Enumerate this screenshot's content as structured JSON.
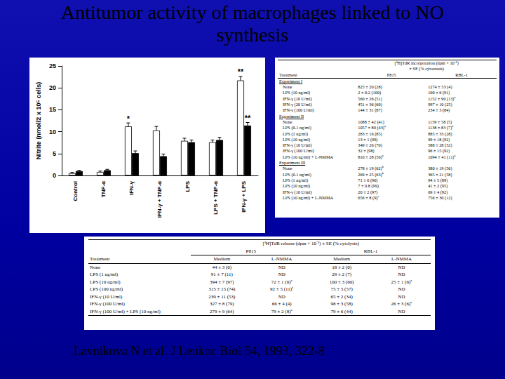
{
  "title_lines": [
    "Antitumor activity of macrophages linked to NO",
    "synthesis"
  ],
  "chart_data": {
    "type": "bar",
    "y_label": "Nitrite (nmol/2 x 10⁵ cells)",
    "categories": [
      "Control",
      "TNF-α",
      "IFN-γ",
      "IFN-γ + TNF-α",
      "LPS",
      "LPS + TNF-α",
      "IFN-γ + LPS"
    ],
    "series": [
      {
        "color": "#ffffff",
        "values": [
          0.5,
          0.8,
          11.2,
          10.3,
          7.9,
          7.6,
          21.7
        ],
        "errors": [
          0.2,
          0.2,
          0.8,
          0.9,
          0.6,
          0.5,
          0.9
        ],
        "annotations": [
          null,
          null,
          "*",
          null,
          null,
          null,
          "**"
        ]
      },
      {
        "color": "#000000",
        "values": [
          1.0,
          1.2,
          5.1,
          4.4,
          7.6,
          8.1,
          11.4
        ],
        "errors": [
          0.2,
          0.2,
          0.5,
          0.5,
          0.5,
          0.6,
          0.7
        ],
        "annotations": [
          null,
          null,
          null,
          null,
          null,
          null,
          "**"
        ]
      }
    ],
    "ylim": [
      0,
      25
    ],
    "yticks": [
      0,
      5,
      10,
      15,
      20,
      25
    ],
    "grid": false
  },
  "table1": {
    "header": {
      "treatment": "Treatment",
      "measure_lines": [
        "[³H]TdR incorporation (dpm × 10⁻³)",
        "± SE (% cytostasis)"
      ],
      "columns": [
        "P815",
        "RBL-1"
      ]
    },
    "sections": [
      {
        "label": "Experiment I",
        "rows": [
          [
            "None",
            "825 ± 20 (28)",
            "1274 ± 53 (4)"
          ],
          [
            "LPS (10 ng/ml)",
            "2 ± 0.2 (100)",
            "100 ± 6 (91)"
          ],
          [
            "IFN-γ (10 U/ml)",
            "560 ± 26 (51)",
            {
              "text": "1152 ± 90 (13)",
              "note": "a"
            }
          ],
          [
            "IFN-γ (20 U/ml)",
            "451 ± 36 (60)",
            "997 ± 10 (25)"
          ],
          [
            "IFN-γ (100 U/ml)",
            "144 ± 31 (87)",
            "234 ± 3 (84)"
          ]
        ]
      },
      {
        "label": "Experiment II",
        "rows": [
          [
            "None",
            "1088 ± 42 (41)",
            "1159 ± 58 (5)"
          ],
          [
            "LPS (0.1 ng/ml)",
            {
              "text": "1057 ± 80 (43)",
              "note": "a"
            },
            {
              "text": "1138 ± 83 (7)",
              "note": "a"
            }
          ],
          [
            "LPS (1 ng/ml)",
            "283 ± 16 (85)",
            "885 ± 33 (28)"
          ],
          [
            "LPS (10 ng/ml)",
            "13 ± 1 (99)",
            "99 ± 18 (92)"
          ],
          [
            "IFN-γ (10 U/ml)",
            "349 ± 26 (70)",
            "588 ± 28 (52)"
          ],
          [
            "IFN-γ (100 U/ml)",
            "32 ± (98)",
            "96 ± 15 (92)"
          ],
          [
            "LPS (10 ng/ml) + L-NMMA",
            {
              "text": "810 ± 28 (56)",
              "note": "a"
            },
            {
              "text": "1094 ± 41 (11)",
              "note": "a"
            }
          ]
        ]
      },
      {
        "label": "Experiment III",
        "rows": [
          [
            "None",
            {
              "text": "278 ± 19 (62)",
              "note": "b"
            },
            "380 ± 19 (56)"
          ],
          [
            "LPS (0.1 ng/ml)",
            {
              "text": "269 ± 25 (63)",
              "note": "b"
            },
            "365 ± 21 (58)"
          ],
          [
            "LPS (1 ng/ml)",
            "71 ± 6 (90)",
            "94 ± 5 (89)"
          ],
          [
            "LPS (10 ng/ml)",
            "7 ± 0.8 (99)",
            "41 ± 2 (95)"
          ],
          [
            "IFN-γ (10 U/ml)",
            "20 ± 2 (97)",
            "69 ± 4 (92)"
          ],
          [
            "LPS (10 ng/ml) + L-NMMA",
            {
              "text": "656 ± 8 (9)",
              "note": "c"
            },
            "756 ± 30 (12)"
          ]
        ]
      }
    ]
  },
  "table2": {
    "header": {
      "treatment": "Treatment",
      "measure": "[³H]TdR release (dpm × 10⁻³) ± SE (% cytolysis)",
      "groups": [
        "P815",
        "RBL-1"
      ],
      "subcolumns": [
        "Medium",
        "L-NMMA"
      ]
    },
    "rows": [
      [
        "None",
        "44 ± 3 (0)",
        "ND",
        "18 ± 2 (0)",
        "ND"
      ],
      [
        "LPS (1 ng/ml)",
        "91 ± 7 (11)",
        "ND",
        "29 ± 2 (7)",
        "ND"
      ],
      [
        "LPS (10 ng/ml)",
        "394 ± 7 (97)",
        {
          "text": "72 ± 1 (6)",
          "note": "a"
        },
        "100 ± 3 (60)",
        {
          "text": "25 ± 1 (6)",
          "note": "a"
        }
      ],
      [
        "LPS (100 ng/ml)",
        "315 ± 15 (74)",
        {
          "text": "92 ± 5 (11)",
          "note": "a"
        },
        "75 ± 5 (57)",
        "ND"
      ],
      [
        "IFN-γ (10 U/ml)",
        "239 ± 11 (53)",
        "ND",
        "65 ± 2 (34)",
        "ND"
      ],
      [
        "IFN-γ (100 U/ml)",
        "327 ± 8 (79)",
        "66 ± 4 (4)",
        "98 ± 3 (58)",
        {
          "text": "26 ± 3 (6)",
          "note": "a"
        }
      ],
      [
        "IFN-γ (100 U/ml) + LPS (10 ng/ml)",
        "279 ± 9 (64)",
        {
          "text": "79 ± 2 (8)",
          "note": "a"
        },
        "79 ± 6 (44)",
        "ND"
      ]
    ]
  },
  "citation": "Lavnikova N et al. J Leukoc Biol 54, 1993, 322-8"
}
